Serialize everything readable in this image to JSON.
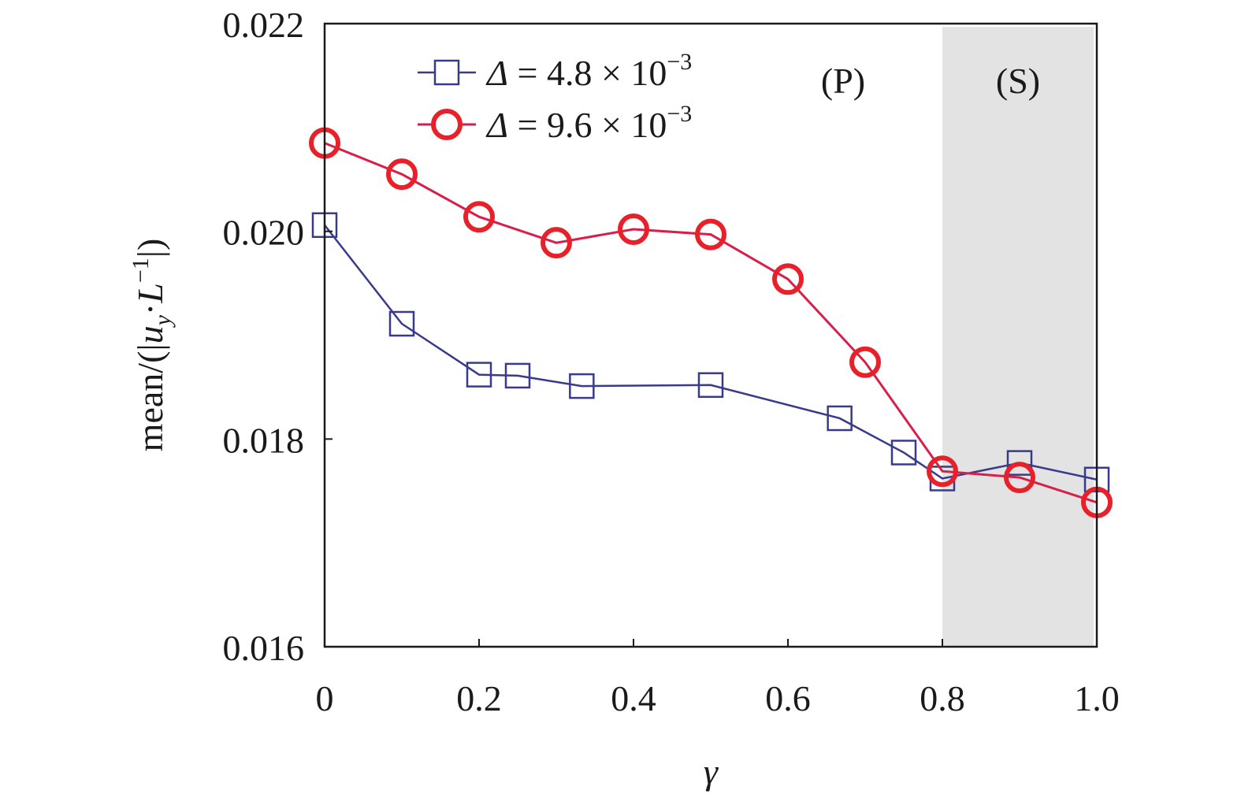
{
  "chart_data": {
    "type": "line",
    "xlabel": "γ",
    "ylabel": "mean/(|u_y·L^-1|)",
    "ylabel_parts": {
      "pre": "mean/(|",
      "u": "u",
      "u_sub": "y",
      "mid": "·",
      "L": "L",
      "L_sup": "−1",
      "post": "|)"
    },
    "xlim": [
      0,
      1.0
    ],
    "ylim": [
      0.016,
      0.022
    ],
    "x_ticks": [
      0,
      0.2,
      0.4,
      0.6,
      0.8,
      1.0
    ],
    "x_tick_labels": [
      "0",
      "0.2",
      "0.4",
      "0.6",
      "0.8",
      "1.0"
    ],
    "y_ticks": [
      0.016,
      0.018,
      0.02,
      0.022
    ],
    "y_tick_labels": [
      "0.016",
      "0.018",
      "0.020",
      "0.022"
    ],
    "grid": false,
    "legend_position": "top-left",
    "regions": [
      {
        "label": "(P)",
        "x_start": 0,
        "x_end": 0.8,
        "shaded": false
      },
      {
        "label": "(S)",
        "x_start": 0.8,
        "x_end": 1.0,
        "shaded": true,
        "color": "#e3e3e3"
      }
    ],
    "series": [
      {
        "name": "Δ = 4.8 × 10^-3",
        "legend": {
          "symbol": "Δ",
          "text": " = 4.8 × 10",
          "sup": "−3"
        },
        "marker": "square",
        "color": "#3a3a8c",
        "x": [
          0,
          0.1,
          0.2,
          0.25,
          0.333,
          0.5,
          0.667,
          0.75,
          0.8,
          0.9,
          1.0
        ],
        "values": [
          0.02006,
          0.01911,
          0.01862,
          0.01861,
          0.01851,
          0.01852,
          0.0182,
          0.01787,
          0.01762,
          0.01777,
          0.01761
        ]
      },
      {
        "name": "Δ = 9.6 × 10^-3",
        "legend": {
          "symbol": "Δ",
          "text": " = 9.6 × 10",
          "sup": "−3"
        },
        "marker": "circle",
        "color": "#e8202a",
        "line_color": "#d81e4a",
        "x": [
          0,
          0.1,
          0.2,
          0.3,
          0.4,
          0.5,
          0.6,
          0.7,
          0.8,
          0.9,
          1.0
        ],
        "values": [
          0.02085,
          0.02055,
          0.02014,
          0.01989,
          0.02002,
          0.01997,
          0.01954,
          0.01874,
          0.01769,
          0.01763,
          0.01739
        ]
      }
    ]
  }
}
